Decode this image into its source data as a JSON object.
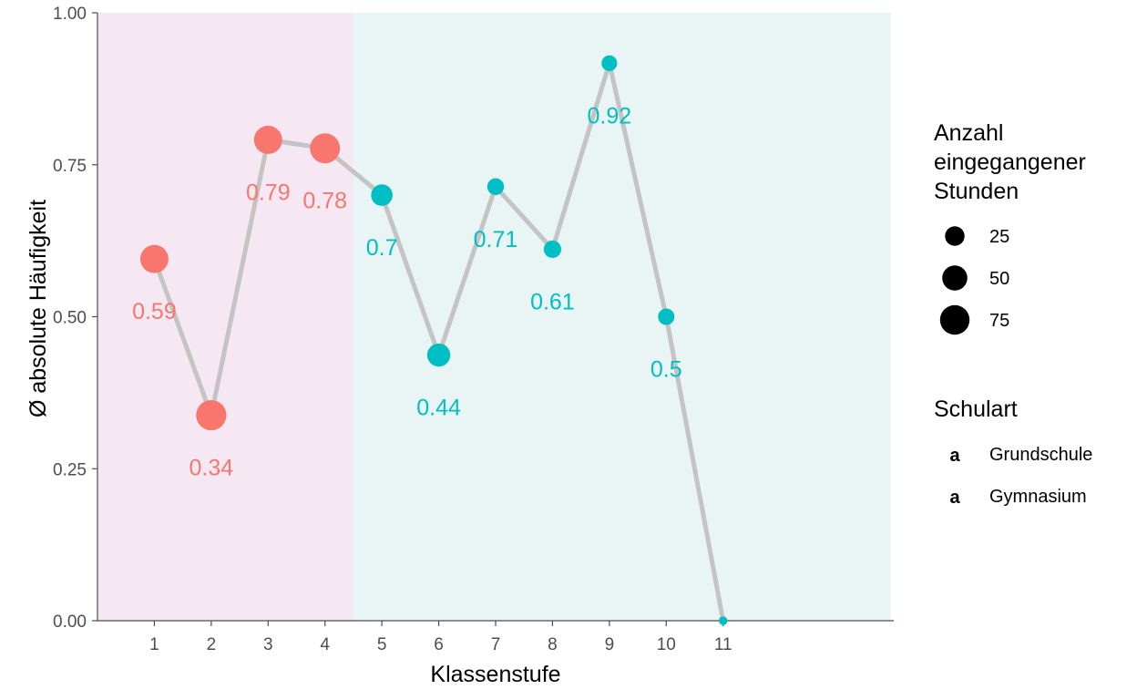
{
  "chart_data": {
    "type": "line",
    "xlabel": "Klassenstufe",
    "ylabel": "Ø absolute Häufigkeit",
    "xlim": [
      0,
      14
    ],
    "ylim": [
      0,
      1
    ],
    "x_ticks": [
      "1",
      "2",
      "3",
      "4",
      "5",
      "6",
      "7",
      "8",
      "9",
      "10",
      "11"
    ],
    "y_ticks": [
      "0.00",
      "0.25",
      "0.50",
      "0.75",
      "1.00"
    ],
    "grid": false,
    "legend_position": "right",
    "line_color": "#c4c4c4",
    "background_regions": [
      {
        "from": 0,
        "to": 4.5,
        "color": "#f5e8f3"
      },
      {
        "from": 4.5,
        "to": 13.95,
        "color": "#e9f5f5"
      }
    ],
    "points": [
      {
        "x": 1,
        "y": 0.595,
        "label": "0.59",
        "size": 67,
        "group": "Grundschule"
      },
      {
        "x": 2,
        "y": 0.338,
        "label": "0.34",
        "size": 80,
        "group": "Grundschule"
      },
      {
        "x": 3,
        "y": 0.791,
        "label": "0.79",
        "size": 67,
        "group": "Grundschule"
      },
      {
        "x": 4,
        "y": 0.777,
        "label": "0.78",
        "size": 78,
        "group": "Grundschule"
      },
      {
        "x": 5,
        "y": 0.7,
        "label": "0.7",
        "size": 33,
        "group": "Gymnasium"
      },
      {
        "x": 6,
        "y": 0.437,
        "label": "0.44",
        "size": 40,
        "group": "Gymnasium"
      },
      {
        "x": 7,
        "y": 0.714,
        "label": "0.71",
        "size": 16,
        "group": "Gymnasium"
      },
      {
        "x": 8,
        "y": 0.611,
        "label": "0.61",
        "size": 18,
        "group": "Gymnasium"
      },
      {
        "x": 9,
        "y": 0.917,
        "label": "0.92",
        "size": 13,
        "group": "Gymnasium"
      },
      {
        "x": 10,
        "y": 0.5,
        "label": "0.5",
        "size": 15,
        "group": "Gymnasium"
      },
      {
        "x": 11,
        "y": 0.0,
        "label": "",
        "size": 1,
        "group": "Gymnasium"
      }
    ],
    "legend_size": {
      "title": [
        "Anzahl",
        "eingegangener",
        "Stunden"
      ],
      "entries": [
        {
          "label": "25",
          "size": 25
        },
        {
          "label": "50",
          "size": 50
        },
        {
          "label": "75",
          "size": 75
        }
      ]
    },
    "legend_color": {
      "title": "Schulart",
      "entries": [
        {
          "label": "Grundschule",
          "color": "#f8766d",
          "key": "a"
        },
        {
          "label": "Gymnasium",
          "color": "#00bfc4",
          "key": "a"
        }
      ]
    },
    "colors": {
      "Grundschule": "#f8766d",
      "Gymnasium": "#00bfc4"
    }
  }
}
